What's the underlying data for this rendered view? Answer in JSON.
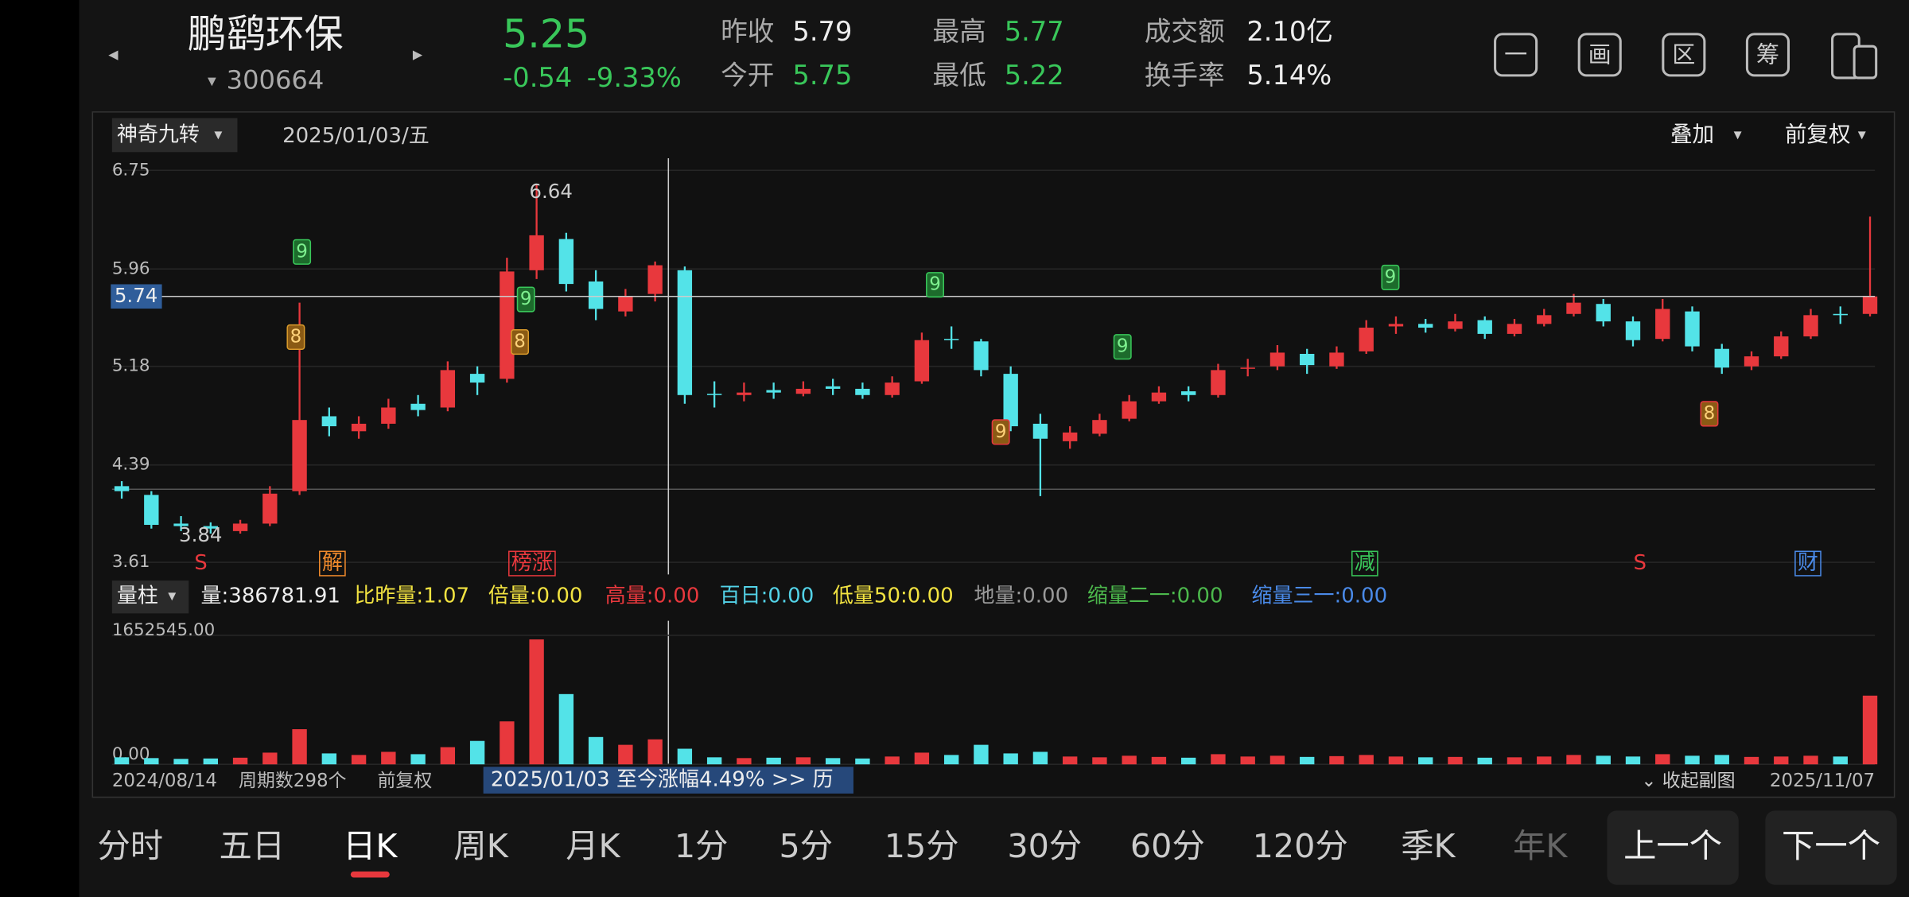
{
  "header": {
    "name": "鹏鹞环保",
    "code": "300664",
    "price": "5.25",
    "change": "-0.54",
    "change_pct": "-9.33%",
    "stats": [
      {
        "label": "昨收",
        "value": "5.79"
      },
      {
        "label": "今开",
        "value": "5.75"
      },
      {
        "label": "最高",
        "value": "5.77"
      },
      {
        "label": "最低",
        "value": "5.22"
      },
      {
        "label": "成交额",
        "value": "2.10亿"
      },
      {
        "label": "换手率",
        "value": "5.14%"
      }
    ],
    "icons": [
      "一",
      "画",
      "区",
      "筹"
    ]
  },
  "chart_data": {
    "type": "candlestick",
    "indicator": "神奇九转",
    "date": "2025/01/03/五",
    "overlay": "叠加",
    "adjust": "前复权",
    "ylim": [
      3.61,
      6.75
    ],
    "yticks": [
      6.75,
      5.96,
      5.18,
      4.39,
      3.61
    ],
    "crosshair": 5.74,
    "max_label": 6.64,
    "min_label": 3.84,
    "up_color": "#e8383d",
    "down_color": "#53e3e8",
    "events": [
      "S",
      "解",
      "榜涨",
      "减",
      "S",
      "财"
    ],
    "td_labels": [
      "9",
      "8",
      "9",
      "8",
      "9",
      "9",
      "9",
      "9",
      "8"
    ],
    "candles": [
      [
        4.22,
        4.26,
        4.12,
        4.18
      ],
      [
        4.15,
        4.18,
        3.88,
        3.91
      ],
      [
        3.92,
        3.98,
        3.86,
        3.9
      ],
      [
        3.9,
        3.93,
        3.84,
        3.88
      ],
      [
        3.86,
        3.95,
        3.84,
        3.92
      ],
      [
        3.92,
        4.22,
        3.9,
        4.16
      ],
      [
        4.18,
        5.69,
        4.15,
        4.75
      ],
      [
        4.78,
        4.85,
        4.62,
        4.7
      ],
      [
        4.66,
        4.78,
        4.6,
        4.72
      ],
      [
        4.72,
        4.92,
        4.68,
        4.85
      ],
      [
        4.88,
        4.95,
        4.78,
        4.83
      ],
      [
        4.85,
        5.22,
        4.82,
        5.15
      ],
      [
        5.12,
        5.18,
        4.95,
        5.05
      ],
      [
        5.08,
        6.05,
        5.05,
        5.94
      ],
      [
        5.95,
        6.64,
        5.88,
        6.23
      ],
      [
        6.2,
        6.25,
        5.78,
        5.84
      ],
      [
        5.86,
        5.95,
        5.55,
        5.64
      ],
      [
        5.62,
        5.8,
        5.58,
        5.74
      ],
      [
        5.76,
        6.02,
        5.7,
        5.99
      ],
      [
        5.95,
        5.98,
        4.88,
        4.95
      ],
      [
        4.96,
        5.06,
        4.85,
        4.95
      ],
      [
        4.95,
        5.05,
        4.9,
        4.97
      ],
      [
        4.99,
        5.05,
        4.92,
        4.97
      ],
      [
        4.96,
        5.06,
        4.94,
        5.0
      ],
      [
        5.02,
        5.08,
        4.95,
        5.0
      ],
      [
        5.0,
        5.05,
        4.92,
        4.95
      ],
      [
        4.95,
        5.1,
        4.93,
        5.05
      ],
      [
        5.06,
        5.45,
        5.04,
        5.39
      ],
      [
        5.4,
        5.5,
        5.32,
        5.39
      ],
      [
        5.38,
        5.4,
        5.1,
        5.15
      ],
      [
        5.12,
        5.18,
        4.66,
        4.7
      ],
      [
        4.72,
        4.8,
        4.14,
        4.6
      ],
      [
        4.58,
        4.7,
        4.52,
        4.65
      ],
      [
        4.64,
        4.8,
        4.62,
        4.75
      ],
      [
        4.76,
        4.95,
        4.74,
        4.9
      ],
      [
        4.9,
        5.02,
        4.88,
        4.97
      ],
      [
        4.98,
        5.02,
        4.9,
        4.95
      ],
      [
        4.95,
        5.2,
        4.93,
        5.15
      ],
      [
        5.16,
        5.24,
        5.1,
        5.17
      ],
      [
        5.18,
        5.35,
        5.15,
        5.29
      ],
      [
        5.28,
        5.32,
        5.12,
        5.19
      ],
      [
        5.18,
        5.34,
        5.16,
        5.29
      ],
      [
        5.3,
        5.55,
        5.28,
        5.49
      ],
      [
        5.5,
        5.58,
        5.44,
        5.52
      ],
      [
        5.52,
        5.56,
        5.45,
        5.49
      ],
      [
        5.48,
        5.6,
        5.46,
        5.54
      ],
      [
        5.55,
        5.58,
        5.4,
        5.44
      ],
      [
        5.44,
        5.56,
        5.42,
        5.52
      ],
      [
        5.52,
        5.64,
        5.5,
        5.59
      ],
      [
        5.6,
        5.76,
        5.58,
        5.69
      ],
      [
        5.68,
        5.72,
        5.5,
        5.54
      ],
      [
        5.54,
        5.58,
        5.34,
        5.39
      ],
      [
        5.4,
        5.72,
        5.38,
        5.64
      ],
      [
        5.62,
        5.66,
        5.3,
        5.34
      ],
      [
        5.32,
        5.36,
        5.12,
        5.17
      ],
      [
        5.18,
        5.3,
        5.15,
        5.26
      ],
      [
        5.26,
        5.46,
        5.24,
        5.42
      ],
      [
        5.42,
        5.64,
        5.4,
        5.59
      ],
      [
        5.6,
        5.66,
        5.52,
        5.59
      ],
      [
        5.6,
        6.38,
        5.58,
        5.74
      ]
    ]
  },
  "volume_chart": {
    "type": "bar",
    "selector": "量柱",
    "stats": [
      "量:386781.91",
      "比昨量:1.07",
      "倍量:0.00",
      "高量:0.00",
      "百日:0.00",
      "低量50:0.00",
      "地量:0.00",
      "缩量二一:0.00",
      "缩量三一:0.00"
    ],
    "ylim": [
      0,
      1652545
    ],
    "yticks": [
      {
        "value": 1652545,
        "label": "1652545.00"
      },
      {
        "value": 0,
        "label": "0.00"
      }
    ],
    "values": [
      90000,
      80000,
      70000,
      75000,
      85000,
      150000,
      450000,
      140000,
      120000,
      160000,
      130000,
      220000,
      300000,
      550000,
      1600000,
      900000,
      350000,
      250000,
      320000,
      200000,
      90000,
      80000,
      85000,
      90000,
      80000,
      75000,
      100000,
      150000,
      120000,
      250000,
      140000,
      160000,
      100000,
      90000,
      110000,
      95000,
      85000,
      130000,
      100000,
      110000,
      95000,
      105000,
      120000,
      100000,
      90000,
      95000,
      85000,
      90000,
      100000,
      120000,
      110000,
      100000,
      130000,
      110000,
      120000,
      95000,
      100000,
      110000,
      100000,
      880000
    ]
  },
  "footer": {
    "start": "2024/08/14",
    "periods": "周期数298个",
    "adjust": "前复权",
    "range": "2025/01/03 至今涨幅4.49%  >> 历",
    "collapse": "⌄ 收起副图",
    "end": "2025/11/07"
  },
  "tabs": [
    "分时",
    "五日",
    "日K",
    "周K",
    "月K",
    "1分",
    "5分",
    "15分",
    "30分",
    "60分",
    "120分",
    "季K",
    "年K"
  ],
  "buttons": [
    "上一个",
    "下一个"
  ]
}
